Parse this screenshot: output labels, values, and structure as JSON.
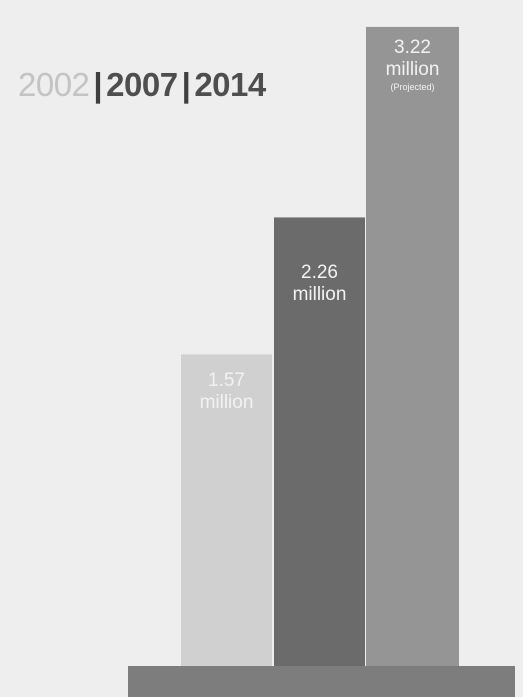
{
  "chart_data": {
    "type": "bar",
    "categories": [
      "2002",
      "2007",
      "2014"
    ],
    "values": [
      1.57,
      2.26,
      3.22
    ],
    "units": "million",
    "labels": [
      {
        "value": "1.57",
        "unit": "million",
        "note": ""
      },
      {
        "value": "2.26",
        "unit": "million",
        "note": ""
      },
      {
        "value": "3.22",
        "unit": "million",
        "note": "(Projected)"
      }
    ],
    "colors": [
      "#d0d0d0",
      "#6b6b6b",
      "#959595"
    ],
    "legend": {
      "placement": "top-left",
      "items": [
        "2002",
        "2007",
        "2014"
      ],
      "separator": "|"
    },
    "ylim": [
      0,
      3.3
    ],
    "grid": false,
    "title": "",
    "xlabel": "",
    "ylabel": ""
  }
}
